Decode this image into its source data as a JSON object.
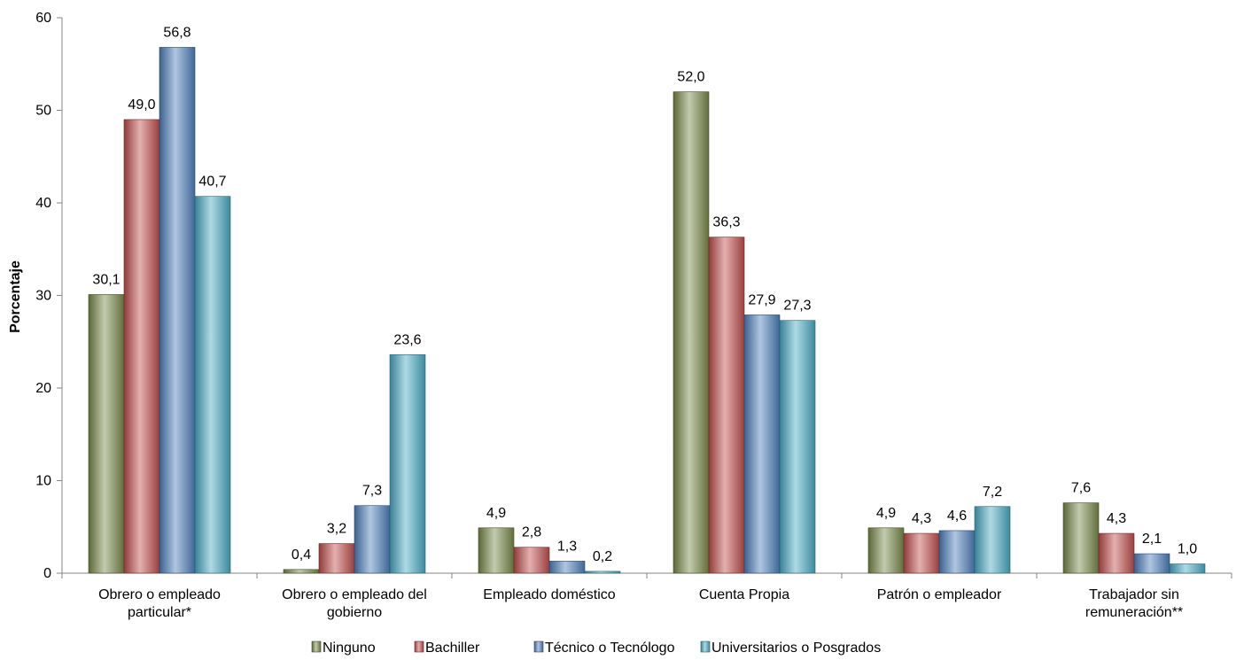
{
  "chart_data": {
    "type": "bar",
    "title": "",
    "xlabel": "",
    "ylabel": "Porcentaje",
    "ylim": [
      0,
      60
    ],
    "yticks": [
      0,
      10,
      20,
      30,
      40,
      50,
      60
    ],
    "grid": false,
    "legend_position": "bottom",
    "categories": [
      [
        "Obrero o empleado",
        "particular*"
      ],
      [
        "Obrero o empleado del",
        "gobierno"
      ],
      [
        "Empleado doméstico"
      ],
      [
        "Cuenta Propia"
      ],
      [
        "Patrón o empleador"
      ],
      [
        "Trabajador sin",
        "remuneración**"
      ]
    ],
    "series": [
      {
        "name": "Ninguno",
        "color": "#7a8a4a",
        "values": [
          30.1,
          0.4,
          4.9,
          52.0,
          4.9,
          7.6
        ],
        "labels": [
          "30,1",
          "0,4",
          "4,9",
          "52,0",
          "4,9",
          "7,6"
        ]
      },
      {
        "name": "Bachiller",
        "color": "#c0504d",
        "values": [
          49.0,
          3.2,
          2.8,
          36.3,
          4.3,
          4.3
        ],
        "labels": [
          "49,0",
          "3,2",
          "2,8",
          "36,3",
          "4,3",
          "4,3"
        ]
      },
      {
        "name": "Técnico o Tecnólogo",
        "color": "#4f81bd",
        "values": [
          56.8,
          7.3,
          1.3,
          27.9,
          4.6,
          2.1
        ],
        "labels": [
          "56,8",
          "7,3",
          "1,3",
          "27,9",
          "4,6",
          "2,1"
        ]
      },
      {
        "name": "Universitarios o Posgrados",
        "color": "#4bacc6",
        "values": [
          40.7,
          23.6,
          0.2,
          27.3,
          7.2,
          1.0
        ],
        "labels": [
          "40,7",
          "23,6",
          "0,2",
          "27,3",
          "7,2",
          "1,0"
        ]
      }
    ]
  }
}
